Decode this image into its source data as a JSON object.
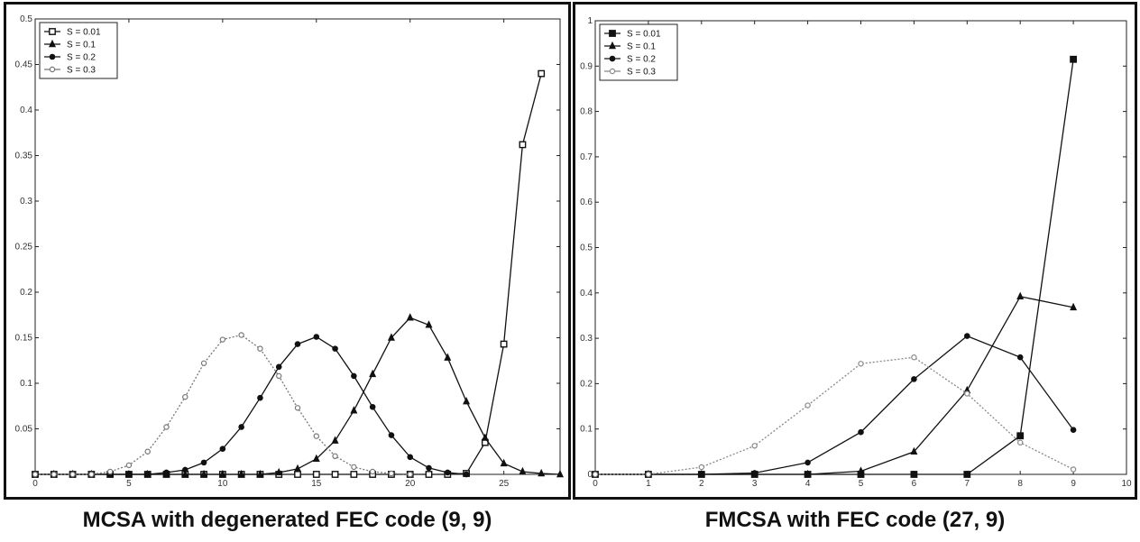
{
  "chart_data": [
    {
      "type": "line",
      "caption": "MCSA with degenerated FEC code (9, 9)",
      "xlim": [
        0,
        28
      ],
      "ylim": [
        0,
        0.5
      ],
      "xticks": [
        0,
        5,
        10,
        15,
        20,
        25
      ],
      "yticks": [
        0.05,
        0.1,
        0.15,
        0.2,
        0.25,
        0.3,
        0.35,
        0.4,
        0.45,
        0.5
      ],
      "ytick_labels": [
        "0.05",
        "0.1",
        "0.15",
        "0.2",
        "0.25",
        "0.3",
        "0.35",
        "0.4",
        "0.45",
        "0.5"
      ],
      "legend_position": "top-left",
      "series": [
        {
          "name": "S = 0.01",
          "color": "#111111",
          "marker": "square-open",
          "x": [
            0,
            1,
            2,
            3,
            4,
            5,
            6,
            7,
            8,
            9,
            10,
            11,
            12,
            13,
            14,
            15,
            16,
            17,
            18,
            19,
            20,
            21,
            22,
            23,
            24,
            25,
            26,
            27
          ],
          "y": [
            0,
            0,
            0,
            0,
            0,
            0,
            0,
            0,
            0,
            0,
            0,
            0,
            0,
            0,
            0,
            0,
            0,
            0,
            0,
            0,
            0,
            0,
            0,
            0.001,
            0.035,
            0.143,
            0.362,
            0.44
          ]
        },
        {
          "name": "S = 0.1",
          "color": "#111111",
          "marker": "triangle",
          "x": [
            0,
            1,
            2,
            3,
            4,
            5,
            6,
            7,
            8,
            9,
            10,
            11,
            12,
            13,
            14,
            15,
            16,
            17,
            18,
            19,
            20,
            21,
            22,
            23,
            24,
            25,
            26,
            27,
            28
          ],
          "y": [
            0,
            0,
            0,
            0,
            0,
            0,
            0,
            0,
            0,
            0,
            0,
            0,
            0,
            0.002,
            0.006,
            0.017,
            0.037,
            0.07,
            0.11,
            0.15,
            0.172,
            0.164,
            0.128,
            0.08,
            0.04,
            0.012,
            0.003,
            0.001,
            0
          ]
        },
        {
          "name": "S = 0.2",
          "color": "#111111",
          "marker": "circle",
          "x": [
            0,
            1,
            2,
            3,
            4,
            5,
            6,
            7,
            8,
            9,
            10,
            11,
            12,
            13,
            14,
            15,
            16,
            17,
            18,
            19,
            20,
            21,
            22,
            23
          ],
          "y": [
            0,
            0,
            0,
            0,
            0,
            0,
            0,
            0.002,
            0.005,
            0.013,
            0.028,
            0.052,
            0.084,
            0.118,
            0.143,
            0.151,
            0.138,
            0.108,
            0.074,
            0.043,
            0.019,
            0.007,
            0.002,
            0
          ]
        },
        {
          "name": "S = 0.3",
          "color": "#777777",
          "marker": "open-circle",
          "x": [
            0,
            1,
            2,
            3,
            4,
            5,
            6,
            7,
            8,
            9,
            10,
            11,
            12,
            13,
            14,
            15,
            16,
            17,
            18,
            19,
            20
          ],
          "y": [
            0,
            0,
            0,
            0,
            0.003,
            0.01,
            0.025,
            0.052,
            0.085,
            0.122,
            0.148,
            0.153,
            0.138,
            0.108,
            0.073,
            0.042,
            0.02,
            0.008,
            0.003,
            0.001,
            0
          ]
        }
      ]
    },
    {
      "type": "line",
      "caption": "FMCSA with FEC code (27, 9)",
      "xlim": [
        0,
        10
      ],
      "ylim": [
        0,
        1
      ],
      "xticks": [
        0,
        1,
        2,
        3,
        4,
        5,
        6,
        7,
        8,
        9,
        10
      ],
      "yticks": [
        0,
        0.1,
        0.2,
        0.3,
        0.4,
        0.5,
        0.6,
        0.7,
        0.8,
        0.9,
        1
      ],
      "ytick_labels": [
        "0",
        "0.1",
        "0.2",
        "0.3",
        "0.4",
        "0.5",
        "0.6",
        "0.7",
        "0.8",
        "0.9",
        "1"
      ],
      "legend_position": "top-left",
      "series": [
        {
          "name": "S = 0.01",
          "color": "#111111",
          "marker": "square",
          "x": [
            0,
            1,
            2,
            3,
            4,
            5,
            6,
            7,
            8,
            9
          ],
          "y": [
            0,
            0,
            0,
            0,
            0,
            0,
            0,
            0,
            0.085,
            0.915
          ]
        },
        {
          "name": "S = 0.1",
          "color": "#111111",
          "marker": "triangle",
          "x": [
            0,
            1,
            2,
            3,
            4,
            5,
            6,
            7,
            8,
            9
          ],
          "y": [
            0,
            0,
            0,
            0,
            0,
            0.007,
            0.05,
            0.185,
            0.392,
            0.368
          ]
        },
        {
          "name": "S = 0.2",
          "color": "#111111",
          "marker": "circle",
          "x": [
            0,
            1,
            2,
            3,
            4,
            5,
            6,
            7,
            8,
            9
          ],
          "y": [
            0,
            0,
            0,
            0.003,
            0.026,
            0.093,
            0.21,
            0.305,
            0.258,
            0.098
          ]
        },
        {
          "name": "S = 0.3",
          "color": "#888888",
          "marker": "open-circle",
          "x": [
            0,
            1,
            2,
            3,
            4,
            5,
            6,
            7,
            8,
            9
          ],
          "y": [
            0,
            0,
            0.016,
            0.063,
            0.152,
            0.244,
            0.258,
            0.178,
            0.07,
            0.011
          ]
        }
      ]
    }
  ]
}
